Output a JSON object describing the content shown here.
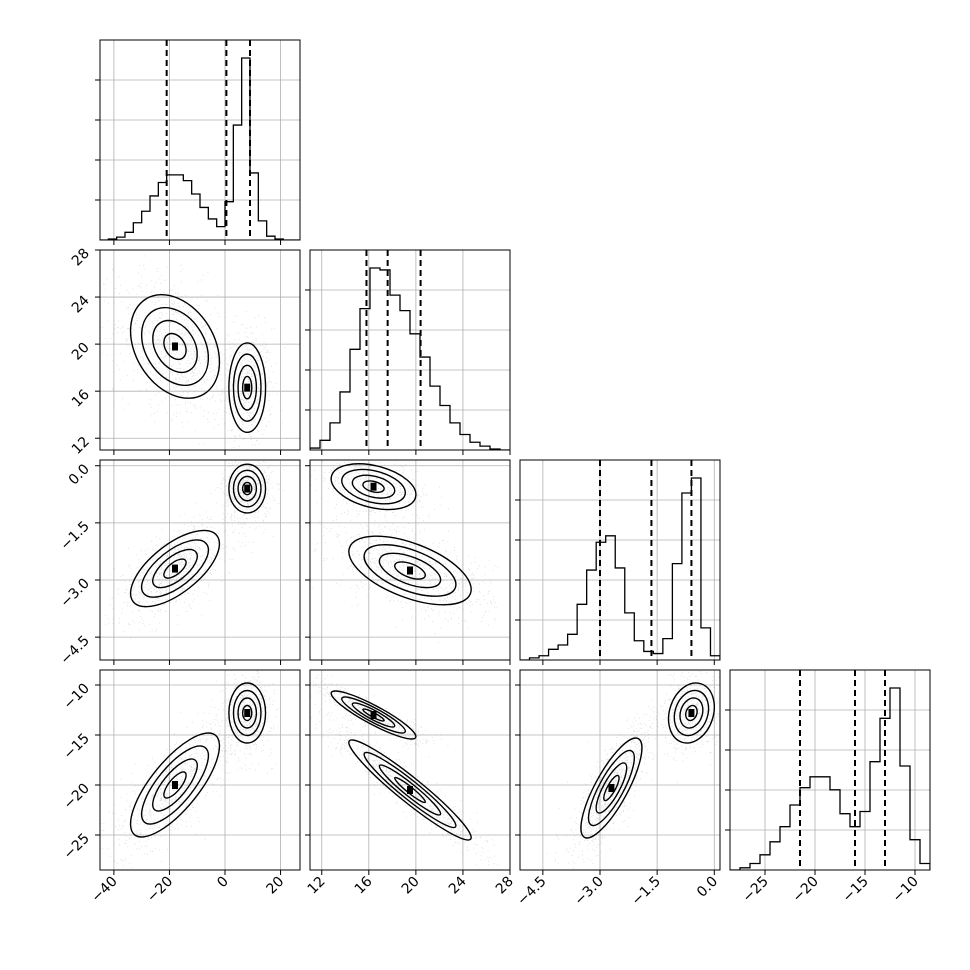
{
  "chart_data": {
    "type": "corner",
    "parameters": [
      {
        "range": [
          -45,
          27
        ],
        "ticks": [
          -40,
          -20,
          0,
          20
        ],
        "tick_labels": [
          "−40",
          "−20",
          "0",
          "20"
        ]
      },
      {
        "range": [
          11,
          28
        ],
        "ticks": [
          12,
          16,
          20,
          24,
          28
        ],
        "tick_labels": [
          "12",
          "16",
          "20",
          "24",
          "28"
        ]
      },
      {
        "range": [
          -5.1,
          0.15
        ],
        "ticks": [
          -4.5,
          -3.0,
          -1.5,
          0.0
        ],
        "tick_labels": [
          "−4.5",
          "−3.0",
          "−1.5",
          "0.0"
        ]
      },
      {
        "range": [
          -28.5,
          -8.5
        ],
        "ticks": [
          -25,
          -20,
          -15,
          -10
        ],
        "tick_labels": [
          "−25",
          "−20",
          "−15",
          "−10"
        ]
      }
    ],
    "quantiles": [
      [
        -21,
        0.5,
        9
      ],
      [
        15.8,
        17.6,
        20.4
      ],
      [
        -3.0,
        -1.65,
        -0.6
      ],
      [
        -21.5,
        -16,
        -13
      ]
    ],
    "histograms": [
      {
        "edges": [
          -45,
          -42,
          -39,
          -36,
          -33,
          -30,
          -27,
          -24,
          -21,
          -18,
          -15,
          -12,
          -9,
          -6,
          -3,
          0,
          3,
          6,
          9,
          12,
          15,
          18,
          21,
          24,
          27
        ],
        "counts": [
          0,
          0.005,
          0.015,
          0.04,
          0.09,
          0.15,
          0.23,
          0.3,
          0.34,
          0.34,
          0.31,
          0.24,
          0.17,
          0.11,
          0.07,
          0.2,
          0.6,
          0.95,
          0.35,
          0.1,
          0.02,
          0.005,
          0,
          0
        ]
      },
      {
        "edges": [
          11,
          11.85,
          12.7,
          13.55,
          14.4,
          15.25,
          16.1,
          16.95,
          17.8,
          18.65,
          19.5,
          20.35,
          21.2,
          22.05,
          22.9,
          23.75,
          24.6,
          25.45,
          26.3,
          27.15,
          28
        ],
        "counts": [
          0.01,
          0.05,
          0.14,
          0.3,
          0.52,
          0.73,
          0.94,
          0.93,
          0.8,
          0.72,
          0.6,
          0.48,
          0.33,
          0.23,
          0.14,
          0.08,
          0.04,
          0.02,
          0.005,
          0
        ]
      },
      {
        "edges": [
          -5.1,
          -4.85,
          -4.6,
          -4.35,
          -4.1,
          -3.85,
          -3.6,
          -3.35,
          -3.1,
          -2.85,
          -2.6,
          -2.35,
          -2.1,
          -1.85,
          -1.6,
          -1.35,
          -1.1,
          -0.85,
          -0.6,
          -0.35,
          -0.1,
          0.15
        ],
        "counts": [
          0,
          0.01,
          0.02,
          0.05,
          0.07,
          0.12,
          0.26,
          0.42,
          0.55,
          0.58,
          0.43,
          0.22,
          0.09,
          0.04,
          0.03,
          0.1,
          0.45,
          0.78,
          0.85,
          0.15,
          0.02
        ]
      },
      {
        "edges": [
          -28.5,
          -27.5,
          -26.5,
          -25.5,
          -24.5,
          -23.5,
          -22.5,
          -21.5,
          -20.5,
          -19.5,
          -18.5,
          -17.5,
          -16.5,
          -15.5,
          -14.5,
          -13.5,
          -12.5,
          -11.5,
          -10.5,
          -9.5,
          -8.5
        ],
        "counts": [
          0,
          0.01,
          0.03,
          0.07,
          0.13,
          0.2,
          0.3,
          0.38,
          0.43,
          0.43,
          0.37,
          0.26,
          0.2,
          0.27,
          0.5,
          0.7,
          0.84,
          0.48,
          0.14,
          0.03
        ]
      }
    ],
    "modes": [
      [
        {
          "x": 8,
          "y": 16.3,
          "sx": 3.3,
          "sy": 1.9,
          "rho": 0,
          "w": 0.4
        },
        {
          "x": -18,
          "y": 19.8,
          "sx": 8,
          "sy": 2.2,
          "rho": -0.3,
          "w": 0.6
        }
      ],
      [
        {
          "x": 8,
          "y": -0.6,
          "sx": 3.3,
          "sy": 0.32,
          "rho": 0,
          "w": 0.4
        },
        {
          "x": -18,
          "y": -2.7,
          "sx": 8,
          "sy": 0.5,
          "rho": 0.65,
          "w": 0.6
        }
      ],
      [
        {
          "x": 8,
          "y": -12.8,
          "sx": 3.3,
          "sy": 1.5,
          "rho": 0,
          "w": 0.4
        },
        {
          "x": -18,
          "y": -20,
          "sx": 8,
          "sy": 2.6,
          "rho": 0.75,
          "w": 0.6
        }
      ],
      [
        {
          "x": 16.4,
          "y": -0.55,
          "sx": 1.8,
          "sy": 0.3,
          "rho": -0.35,
          "w": 0.4
        },
        {
          "x": 19.5,
          "y": -2.75,
          "sx": 2.6,
          "sy": 0.45,
          "rho": -0.55,
          "w": 0.6
        }
      ],
      [
        {
          "x": 16.4,
          "y": -13,
          "sx": 1.8,
          "sy": 1.2,
          "rho": -0.9,
          "w": 0.4
        },
        {
          "x": 19.5,
          "y": -20.5,
          "sx": 2.6,
          "sy": 2.5,
          "rho": -0.95,
          "w": 0.6
        }
      ],
      [
        {
          "x": -0.6,
          "y": -12.8,
          "sx": 0.3,
          "sy": 1.5,
          "rho": 0.2,
          "w": 0.4
        },
        {
          "x": -2.7,
          "y": -20.3,
          "sx": 0.4,
          "sy": 2.5,
          "rho": 0.8,
          "w": 0.6
        }
      ]
    ],
    "grid": true,
    "contour_levels": [
      "0.5-sigma",
      "1-sigma",
      "1.5-sigma",
      "2-sigma"
    ]
  }
}
